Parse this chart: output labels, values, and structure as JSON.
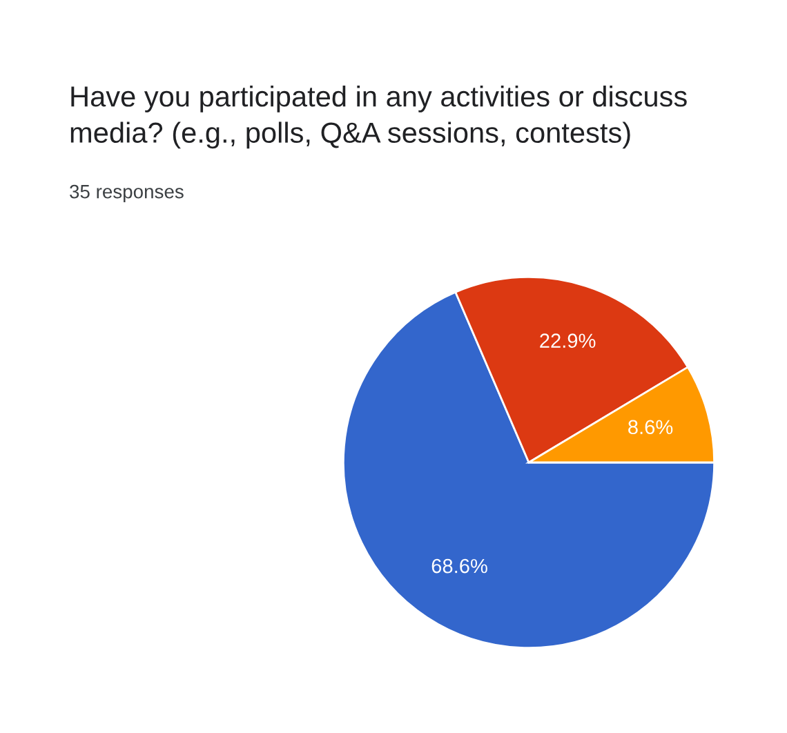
{
  "chart_data": {
    "type": "pie",
    "title": "Have you participated in any activities or discuss\nmedia? (e.g., polls, Q&A sessions, contests)",
    "subtitle": "35 responses",
    "categories": [
      null,
      null,
      null
    ],
    "values": [
      68.6,
      22.9,
      8.6
    ],
    "value_labels": [
      "68.6%",
      "22.9%",
      "8.6%"
    ],
    "colors": [
      "#3366cc",
      "#dc3912",
      "#ff9900"
    ],
    "legend": false
  }
}
